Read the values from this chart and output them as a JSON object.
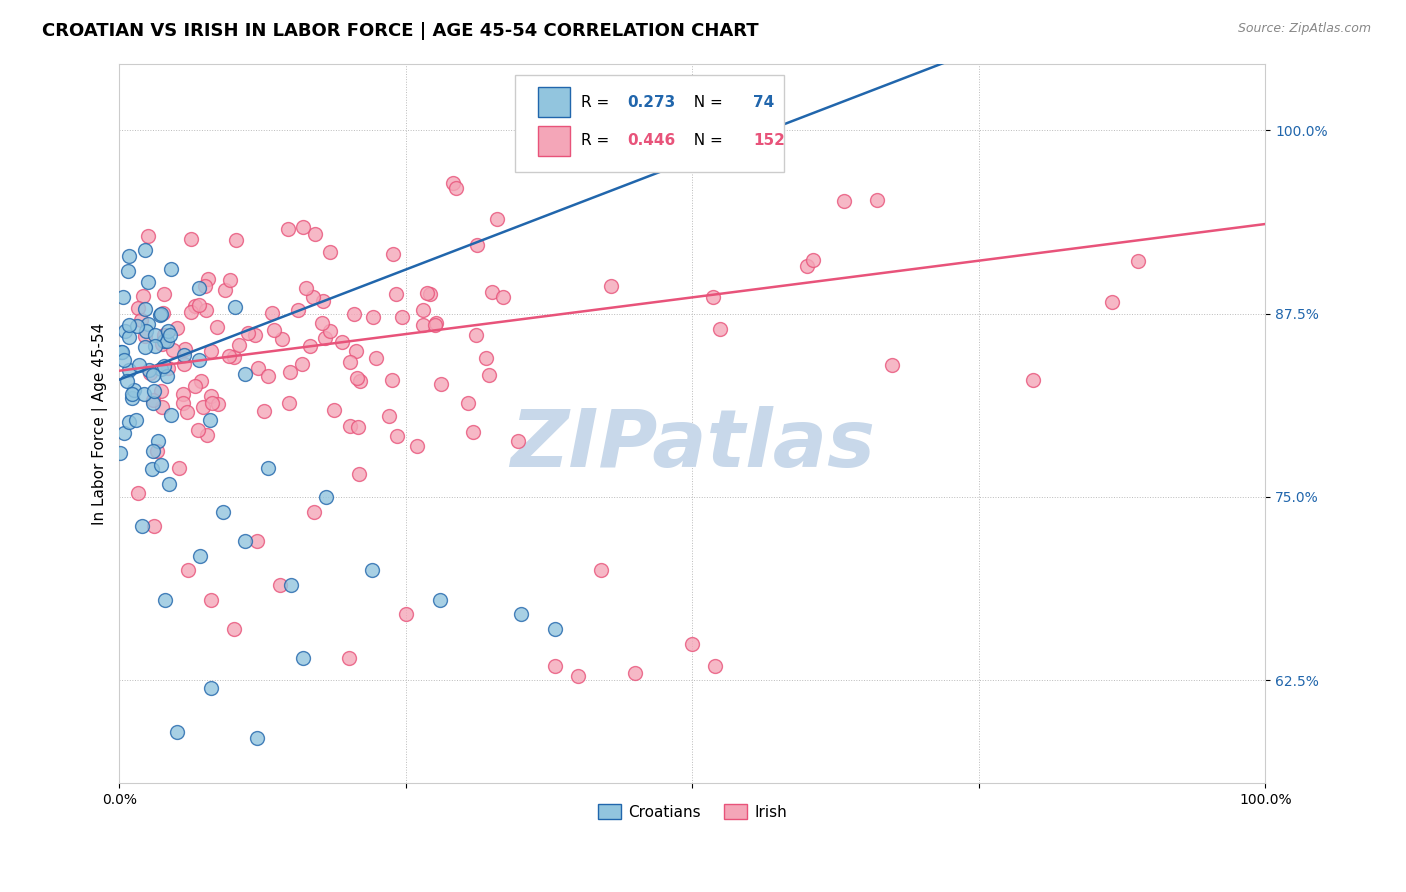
{
  "title": "CROATIAN VS IRISH IN LABOR FORCE | AGE 45-54 CORRELATION CHART",
  "source": "Source: ZipAtlas.com",
  "ylabel": "In Labor Force | Age 45-54",
  "xlim": [
    0.0,
    1.0
  ],
  "ylim": [
    0.555,
    1.045
  ],
  "yticks": [
    0.625,
    0.75,
    0.875,
    1.0
  ],
  "ytick_labels": [
    "62.5%",
    "75.0%",
    "87.5%",
    "100.0%"
  ],
  "croatian_R": 0.273,
  "croatian_N": 74,
  "irish_R": 0.446,
  "irish_N": 152,
  "croatian_color": "#92c5de",
  "irish_color": "#f4a6b8",
  "croatian_line_color": "#2166ac",
  "irish_line_color": "#e8537a",
  "background_color": "#ffffff",
  "watermark_color": "#c8d8ea",
  "seed": 12,
  "title_fontsize": 13,
  "label_fontsize": 11,
  "tick_fontsize": 10,
  "marker_size": 100
}
